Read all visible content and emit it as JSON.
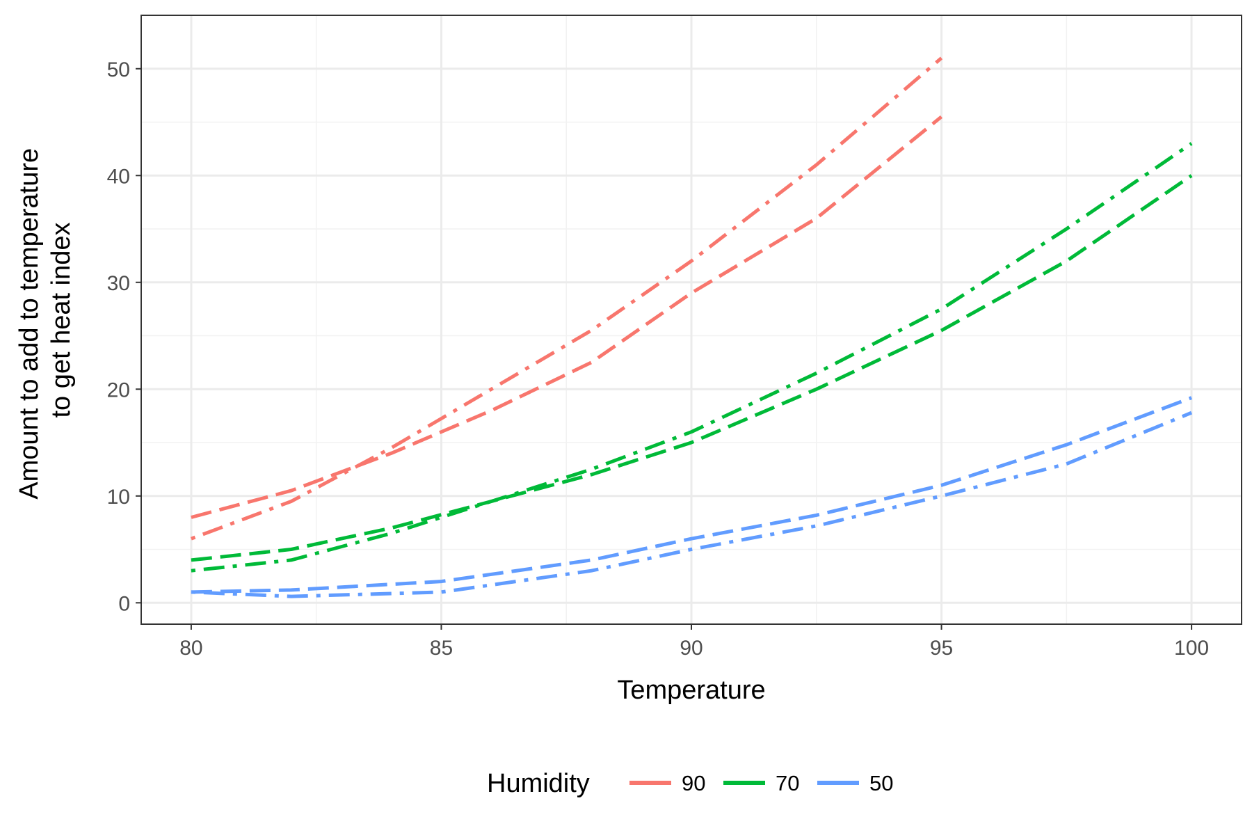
{
  "chart_data": {
    "type": "line",
    "title": "",
    "xlabel": "Temperature",
    "ylabel_lines": [
      "Amount to add to temperature",
      "to get heat index"
    ],
    "xlim": [
      79,
      101
    ],
    "ylim": [
      -2,
      55
    ],
    "x_ticks": [
      80,
      85,
      90,
      95,
      100
    ],
    "y_ticks": [
      0,
      10,
      20,
      30,
      40,
      50
    ],
    "grid": true,
    "legend": {
      "title": "Humidity",
      "position": "bottom",
      "entries": [
        {
          "label": "90",
          "color": "#F8766D"
        },
        {
          "label": "70",
          "color": "#00BA38"
        },
        {
          "label": "50",
          "color": "#619CFF"
        }
      ]
    },
    "series": [
      {
        "humidity": "90",
        "linetype": "dashed",
        "color": "#F8766D",
        "x": [
          80,
          82,
          84,
          86,
          88,
          90,
          92.5,
          95
        ],
        "y": [
          8,
          10.5,
          14,
          18,
          22.5,
          29,
          36,
          45.5
        ]
      },
      {
        "humidity": "90",
        "linetype": "dotdash",
        "color": "#F8766D",
        "x": [
          80,
          82,
          84,
          86,
          88,
          90,
          92.5,
          95
        ],
        "y": [
          6,
          9.5,
          14.5,
          20,
          25.5,
          32,
          41,
          51
        ]
      },
      {
        "humidity": "70",
        "linetype": "dashed",
        "color": "#00BA38",
        "x": [
          80,
          82,
          84,
          86,
          88,
          90,
          92.5,
          95,
          97.5,
          100
        ],
        "y": [
          4,
          5,
          7,
          9.5,
          12,
          15,
          20,
          25.5,
          32,
          40
        ]
      },
      {
        "humidity": "70",
        "linetype": "dotdash",
        "color": "#00BA38",
        "x": [
          80,
          82,
          84,
          86,
          88,
          90,
          92.5,
          95,
          97.5,
          100
        ],
        "y": [
          3,
          4,
          6.5,
          9.5,
          12.5,
          16,
          21.5,
          27.5,
          35,
          43
        ]
      },
      {
        "humidity": "50",
        "linetype": "dashed",
        "color": "#619CFF",
        "x": [
          80,
          82,
          85,
          88,
          90,
          92.5,
          95,
          97.5,
          100
        ],
        "y": [
          1,
          1.2,
          2,
          4,
          6,
          8.2,
          11,
          14.8,
          19.2
        ]
      },
      {
        "humidity": "50",
        "linetype": "dotdash",
        "color": "#619CFF",
        "x": [
          80,
          82,
          85,
          88,
          90,
          92.5,
          95,
          97.5,
          100
        ],
        "y": [
          1,
          0.6,
          1,
          3,
          5,
          7.2,
          10,
          13,
          17.8
        ]
      }
    ]
  }
}
